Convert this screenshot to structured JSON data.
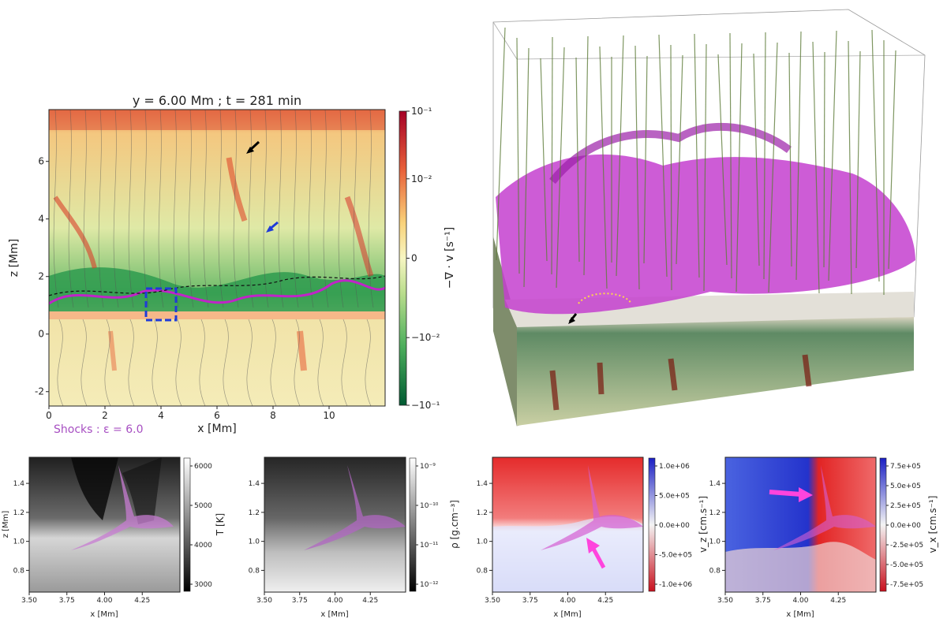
{
  "colors": {
    "shock": "#c024c8",
    "divergence_pos": "#b2182b",
    "divergence_neg": "#1b7837",
    "velocity_pos": "#1a2fc4",
    "velocity_neg": "#d7191c",
    "arrow_magenta": "#ff44dd",
    "arrow_blue": "#1f3bd8",
    "box_blue": "#1f3bd8"
  },
  "chart_data": [
    {
      "id": "main",
      "type": "heatmap",
      "title": "y = 6.00 Mm ; t = 281 min",
      "xlabel": "x [Mm]",
      "ylabel": "z [Mm]",
      "xlim": [
        0,
        12
      ],
      "ylim": [
        -2.5,
        7.8
      ],
      "xticks": [
        "0",
        "2",
        "4",
        "6",
        "8",
        "10"
      ],
      "yticks": [
        "-2",
        "0",
        "2",
        "4",
        "6"
      ],
      "colorbar_label": "−∇ · v [s⁻¹]",
      "colorbar_ticks": [
        "10⁻¹",
        "10⁻²",
        "0",
        "−10⁻²",
        "−10⁻¹"
      ],
      "legend": "Shocks : ε = 6.0",
      "highlight_box": {
        "x": [
          3.5,
          4.5
        ],
        "z": [
          0.6,
          1.5
        ]
      },
      "arrows": [
        {
          "color": "black",
          "x": 7.1,
          "z": 6.4
        },
        {
          "color": "blue",
          "x": 7.6,
          "z": 3.6
        }
      ]
    },
    {
      "id": "render3d",
      "type": "other",
      "description_text": ""
    },
    {
      "id": "temperature",
      "type": "heatmap",
      "xlabel": "x [Mm]",
      "ylabel": "z [Mm]",
      "xlim": [
        3.5,
        4.5
      ],
      "ylim": [
        0.65,
        1.58
      ],
      "xticks": [
        "3.50",
        "3.75",
        "4.00",
        "4.25"
      ],
      "yticks": [
        "0.8",
        "1.0",
        "1.2",
        "1.4"
      ],
      "colorbar_label": "T [K]",
      "colorbar_ticks": [
        "6000",
        "5000",
        "4000",
        "3000"
      ]
    },
    {
      "id": "density",
      "type": "heatmap",
      "xlabel": "x [Mm]",
      "xlim": [
        3.5,
        4.5
      ],
      "ylim": [
        0.65,
        1.58
      ],
      "xticks": [
        "3.50",
        "3.75",
        "4.00",
        "4.25"
      ],
      "yticks": [
        "0.8",
        "1.0",
        "1.2",
        "1.4"
      ],
      "colorbar_label": "ρ [g.cm⁻³]",
      "colorbar_ticks": [
        "10⁻⁹",
        "10⁻¹⁰",
        "10⁻¹¹",
        "10⁻¹²"
      ]
    },
    {
      "id": "vz",
      "type": "heatmap",
      "xlabel": "x [Mm]",
      "xlim": [
        3.5,
        4.5
      ],
      "ylim": [
        0.65,
        1.58
      ],
      "xticks": [
        "3.50",
        "3.75",
        "4.00",
        "4.25"
      ],
      "yticks": [
        "0.8",
        "1.0",
        "1.2",
        "1.4"
      ],
      "colorbar_label": "v_z [cm.s⁻¹]",
      "colorbar_ticks": [
        "1.0e+06",
        "5.0e+05",
        "0.0e+00",
        "-5.0e+05",
        "-1.0e+06"
      ]
    },
    {
      "id": "vx",
      "type": "heatmap",
      "xlabel": "x [Mm]",
      "xlim": [
        3.5,
        4.5
      ],
      "ylim": [
        0.65,
        1.58
      ],
      "xticks": [
        "3.50",
        "3.75",
        "4.00",
        "4.25"
      ],
      "yticks": [
        "0.8",
        "1.0",
        "1.2",
        "1.4"
      ],
      "colorbar_label": "v_x [cm.s⁻¹]",
      "colorbar_ticks": [
        "7.5e+05",
        "5.0e+05",
        "2.5e+05",
        "0.0e+00",
        "-2.5e+05",
        "-5.0e+05",
        "-7.5e+05"
      ]
    }
  ]
}
